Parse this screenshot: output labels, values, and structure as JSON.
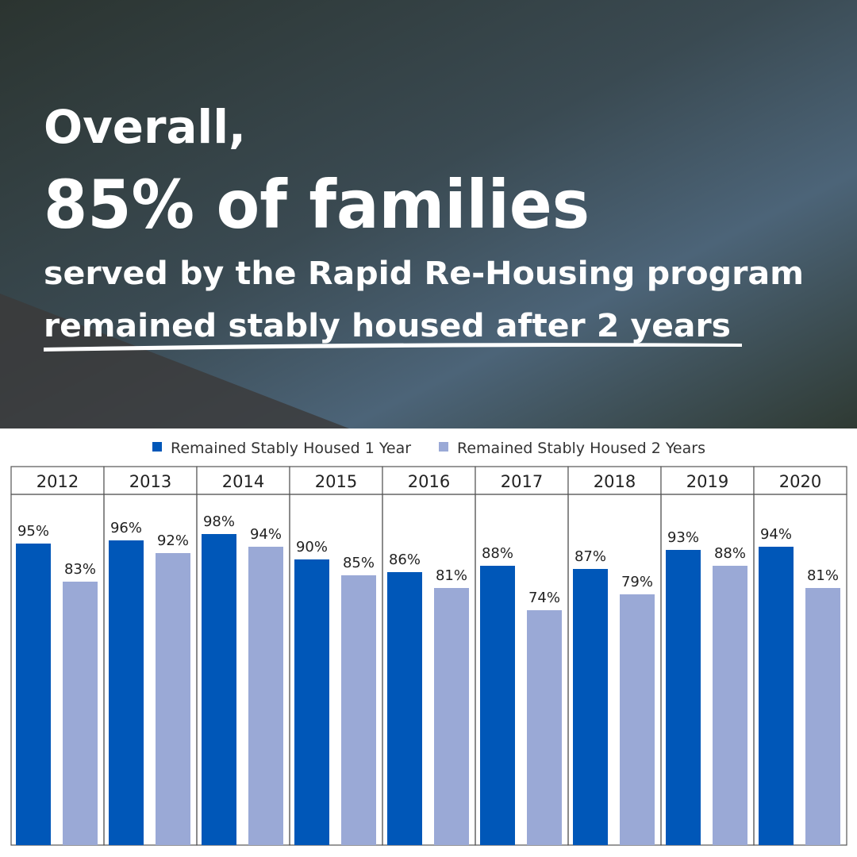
{
  "header": {
    "lines": [
      "Overall,",
      "85% of families",
      "served by the Rapid Re-Housing program",
      "remained stably housed after 2 years"
    ]
  },
  "chart_data": {
    "type": "bar",
    "categories": [
      "2012",
      "2013",
      "2014",
      "2015",
      "2016",
      "2017",
      "2018",
      "2019",
      "2020"
    ],
    "series": [
      {
        "name": "Remained Stably Housed 1 Year",
        "color": "#0057b8",
        "values": [
          95,
          96,
          98,
          90,
          86,
          88,
          87,
          93,
          94
        ],
        "value_labels": [
          "95%",
          "96%",
          "98%",
          "90%",
          "86%",
          "88%",
          "87%",
          "93%",
          "94%"
        ]
      },
      {
        "name": "Remained Stably Housed 2 Years",
        "color": "#9aa9d6",
        "values": [
          83,
          92,
          94,
          85,
          81,
          74,
          79,
          88,
          81
        ],
        "value_labels": [
          "83%",
          "92%",
          "94%",
          "85%",
          "81%",
          "74%",
          "79%",
          "88%",
          "81%"
        ]
      }
    ],
    "ylim": [
      0,
      110.5
    ]
  }
}
